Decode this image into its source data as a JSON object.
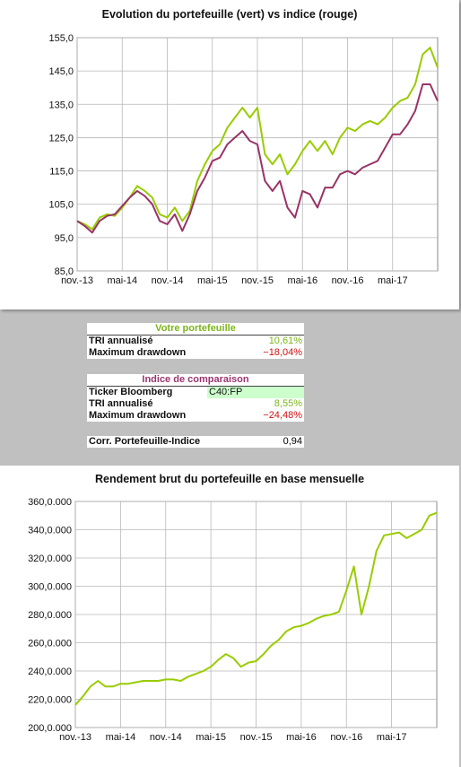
{
  "top_chart": {
    "title": "Evolution du portefeuille (vert) vs indice (rouge)"
  },
  "portfolio_table": {
    "header": "Votre portefeuille",
    "rows": [
      {
        "label": "TRI annualisé",
        "value": "10,61%"
      },
      {
        "label": "Maximum drawdown",
        "value": "−18,04%"
      }
    ]
  },
  "index_table": {
    "header": "Indice de comparaison",
    "rows": [
      {
        "label": "Ticker Bloomberg",
        "value": "C40:FP"
      },
      {
        "label": "TRI annualisé",
        "value": "8,55%"
      },
      {
        "label": "Maximum drawdown",
        "value": "−24,48%"
      }
    ]
  },
  "corr_table": {
    "label": "Corr. Portefeuille-Indice",
    "value": "0,94"
  },
  "bottom_chart": {
    "title": "Rendement brut du portefeuille en base mensuelle"
  },
  "colors": {
    "portfolio": "#99cc00",
    "index": "#993366"
  },
  "chart_data": [
    {
      "type": "line",
      "title": "Evolution du portefeuille (vert) vs indice (rouge)",
      "x_tick_labels": [
        "nov.-13",
        "mai-14",
        "nov.-14",
        "mai-15",
        "nov.-15",
        "mai-16",
        "nov.-16",
        "mai-17"
      ],
      "x_range": [
        0,
        48
      ],
      "y_tick_labels": [
        "85,0",
        "95,0",
        "105,0",
        "115,0",
        "125,0",
        "135,0",
        "145,0",
        "155,0"
      ],
      "ylim": [
        85,
        155
      ],
      "grid": true,
      "series": [
        {
          "name": "portefeuille",
          "color": "#99cc00",
          "points": [
            [
              0,
              100
            ],
            [
              1,
              99
            ],
            [
              2,
              97.5
            ],
            [
              3,
              101
            ],
            [
              4,
              102
            ],
            [
              5,
              101.5
            ],
            [
              6,
              104
            ],
            [
              7,
              107
            ],
            [
              8,
              110.5
            ],
            [
              9,
              109
            ],
            [
              10,
              107
            ],
            [
              11,
              102
            ],
            [
              12,
              101
            ],
            [
              13,
              104
            ],
            [
              14,
              100
            ],
            [
              15,
              103
            ],
            [
              16,
              112
            ],
            [
              17,
              117
            ],
            [
              18,
              121
            ],
            [
              19,
              123
            ],
            [
              20,
              128
            ],
            [
              21,
              131
            ],
            [
              22,
              134
            ],
            [
              23,
              131
            ],
            [
              24,
              134
            ],
            [
              25,
              120
            ],
            [
              26,
              117
            ],
            [
              27,
              120
            ],
            [
              28,
              114
            ],
            [
              29,
              117
            ],
            [
              30,
              121
            ],
            [
              31,
              124
            ],
            [
              32,
              121
            ],
            [
              33,
              124
            ],
            [
              34,
              120
            ],
            [
              35,
              125
            ],
            [
              36,
              128
            ],
            [
              37,
              127
            ],
            [
              38,
              129
            ],
            [
              39,
              130
            ],
            [
              40,
              129
            ],
            [
              41,
              131
            ],
            [
              42,
              134
            ],
            [
              43,
              136
            ],
            [
              44,
              137
            ],
            [
              45,
              141
            ],
            [
              46,
              150
            ],
            [
              47,
              152
            ],
            [
              48,
              146
            ]
          ]
        },
        {
          "name": "indice",
          "color": "#993366",
          "points": [
            [
              0,
              100
            ],
            [
              1,
              98.5
            ],
            [
              2,
              96.5
            ],
            [
              3,
              100
            ],
            [
              4,
              101.5
            ],
            [
              5,
              102
            ],
            [
              6,
              104.5
            ],
            [
              7,
              107
            ],
            [
              8,
              109
            ],
            [
              9,
              107.5
            ],
            [
              10,
              105
            ],
            [
              11,
              100
            ],
            [
              12,
              99
            ],
            [
              13,
              102
            ],
            [
              14,
              97
            ],
            [
              15,
              102
            ],
            [
              16,
              109
            ],
            [
              17,
              113
            ],
            [
              18,
              118
            ],
            [
              19,
              119
            ],
            [
              20,
              123
            ],
            [
              21,
              125
            ],
            [
              22,
              127
            ],
            [
              23,
              124
            ],
            [
              24,
              123
            ],
            [
              25,
              112
            ],
            [
              26,
              109
            ],
            [
              27,
              112
            ],
            [
              28,
              104
            ],
            [
              29,
              101
            ],
            [
              30,
              109
            ],
            [
              31,
              108
            ],
            [
              32,
              104
            ],
            [
              33,
              110
            ],
            [
              34,
              110
            ],
            [
              35,
              114
            ],
            [
              36,
              115
            ],
            [
              37,
              114
            ],
            [
              38,
              116
            ],
            [
              39,
              117
            ],
            [
              40,
              118
            ],
            [
              41,
              122
            ],
            [
              42,
              126
            ],
            [
              43,
              126
            ],
            [
              44,
              129
            ],
            [
              45,
              133
            ],
            [
              46,
              141
            ],
            [
              47,
              141
            ],
            [
              48,
              136
            ]
          ]
        }
      ]
    },
    {
      "type": "line",
      "title": "Rendement brut du portefeuille en base mensuelle",
      "x_tick_labels": [
        "nov.-13",
        "mai-14",
        "nov.-14",
        "mai-15",
        "nov.-15",
        "mai-16",
        "nov.-16",
        "mai-17"
      ],
      "x_range": [
        0,
        48
      ],
      "y_tick_labels": [
        "200,0.000",
        "220,0.000",
        "240,0.000",
        "260,0.000",
        "280,0.000",
        "300,0.000",
        "320,0.000",
        "340,0.000",
        "360,0.000"
      ],
      "ylim": [
        200,
        360
      ],
      "grid": true,
      "series": [
        {
          "name": "portefeuille",
          "color": "#99cc00",
          "points": [
            [
              0,
              216
            ],
            [
              1,
              222
            ],
            [
              2,
              229
            ],
            [
              3,
              233
            ],
            [
              4,
              229
            ],
            [
              5,
              229
            ],
            [
              6,
              231
            ],
            [
              7,
              231
            ],
            [
              8,
              232
            ],
            [
              9,
              233
            ],
            [
              10,
              233
            ],
            [
              11,
              233
            ],
            [
              12,
              234
            ],
            [
              13,
              234
            ],
            [
              14,
              233
            ],
            [
              15,
              236
            ],
            [
              16,
              238
            ],
            [
              17,
              240
            ],
            [
              18,
              243
            ],
            [
              19,
              248
            ],
            [
              20,
              252
            ],
            [
              21,
              249
            ],
            [
              22,
              243
            ],
            [
              23,
              246
            ],
            [
              24,
              247
            ],
            [
              25,
              252
            ],
            [
              26,
              258
            ],
            [
              27,
              262
            ],
            [
              28,
              268
            ],
            [
              29,
              271
            ],
            [
              30,
              272
            ],
            [
              31,
              274
            ],
            [
              32,
              277
            ],
            [
              33,
              279
            ],
            [
              34,
              280
            ],
            [
              35,
              282
            ],
            [
              36,
              297
            ],
            [
              37,
              314
            ],
            [
              38,
              280
            ],
            [
              39,
              300
            ],
            [
              40,
              325
            ],
            [
              41,
              336
            ],
            [
              42,
              337
            ],
            [
              43,
              338
            ],
            [
              44,
              334
            ],
            [
              45,
              337
            ],
            [
              46,
              340
            ],
            [
              47,
              350
            ],
            [
              48,
              352
            ]
          ]
        }
      ]
    }
  ]
}
